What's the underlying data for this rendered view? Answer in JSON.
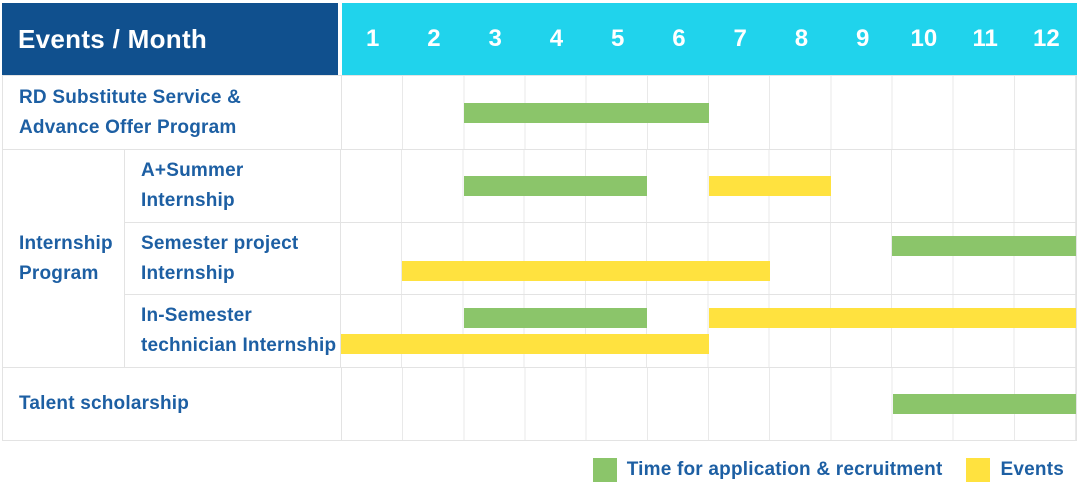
{
  "header": {
    "corner_label": "Events / Month",
    "months": [
      "1",
      "2",
      "3",
      "4",
      "5",
      "6",
      "7",
      "8",
      "9",
      "10",
      "11",
      "12"
    ]
  },
  "colors": {
    "header_bg": "#10508E",
    "months_bg": "#20D3EC",
    "application": "#8BC56A",
    "events": "#FFE23F",
    "label_text": "#1D5FA3"
  },
  "legend": {
    "items": [
      {
        "type": "application",
        "label": "Time for application & recruitment"
      },
      {
        "type": "events",
        "label": "Events"
      }
    ]
  },
  "chart_data": {
    "type": "gantt",
    "x_unit": "month",
    "x_range": [
      1,
      12
    ],
    "x_ticks": [
      "1",
      "2",
      "3",
      "4",
      "5",
      "6",
      "7",
      "8",
      "9",
      "10",
      "11",
      "12"
    ],
    "legend": {
      "application": "Time for application & recruitment",
      "events": "Events"
    },
    "group_label": "Internship Program",
    "group_label_lines": [
      "Internship",
      "Program"
    ],
    "rows": [
      {
        "group": "",
        "label": "RD Substitute Service & Advance Offer Program",
        "label_lines": [
          "RD Substitute Service &",
          "Advance Offer Program"
        ],
        "bars": [
          {
            "type": "application",
            "start_month": 3,
            "end_month": 6,
            "lane": "center"
          }
        ]
      },
      {
        "group": "Internship Program",
        "label": "A+Summer Internship",
        "label_lines": [
          "A+Summer",
          "Internship"
        ],
        "bars": [
          {
            "type": "application",
            "start_month": 3,
            "end_month": 5,
            "lane": "center"
          },
          {
            "type": "events",
            "start_month": 7,
            "end_month": 8,
            "lane": "center"
          }
        ]
      },
      {
        "group": "Internship Program",
        "label": "Semester project Internship",
        "label_lines": [
          "Semester project",
          "Internship"
        ],
        "bars": [
          {
            "type": "application",
            "start_month": 10,
            "end_month": 12,
            "lane": "top"
          },
          {
            "type": "events",
            "start_month": 2,
            "end_month": 7,
            "lane": "bottom"
          }
        ]
      },
      {
        "group": "Internship Program",
        "label": "In-Semester technician Internship",
        "label_lines": [
          "In-Semester",
          "technician Internship"
        ],
        "bars": [
          {
            "type": "application",
            "start_month": 3,
            "end_month": 5,
            "lane": "top"
          },
          {
            "type": "events",
            "start_month": 7,
            "end_month": 12,
            "lane": "top"
          },
          {
            "type": "events",
            "start_month": 1,
            "end_month": 6,
            "lane": "bottom"
          }
        ]
      },
      {
        "group": "",
        "label": "Talent scholarship",
        "label_lines": [
          "Talent scholarship"
        ],
        "bars": [
          {
            "type": "application",
            "start_month": 10,
            "end_month": 12,
            "lane": "center"
          }
        ]
      }
    ]
  }
}
